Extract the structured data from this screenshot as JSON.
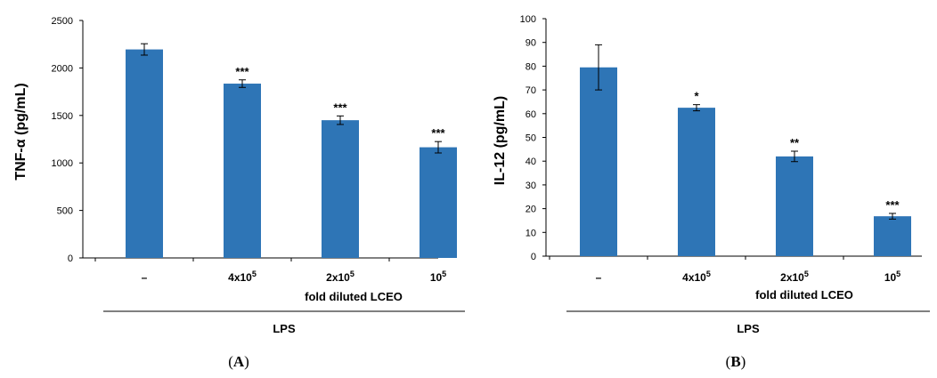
{
  "chart_data": [
    {
      "type": "bar",
      "panel_label": "(A)",
      "panel_letter": "A",
      "ylabel": "TNF-α (pg/mL)",
      "ylim": [
        0,
        2500
      ],
      "yticks": [
        "0",
        "500",
        "1000",
        "1500",
        "2000",
        "2500"
      ],
      "categories": [
        {
          "main": "–",
          "sup": ""
        },
        {
          "main": "4x10",
          "sup": "5"
        },
        {
          "main": "2x10",
          "sup": "5"
        },
        {
          "main": "10",
          "sup": "5"
        }
      ],
      "values": [
        2195,
        1835,
        1450,
        1165
      ],
      "errors": [
        60,
        40,
        45,
        60
      ],
      "significance": [
        "",
        "***",
        "***",
        "***"
      ],
      "xlabel": "fold diluted LCEO",
      "group_label": "LPS",
      "color": "#2e75b6"
    },
    {
      "type": "bar",
      "panel_label": "(B)",
      "panel_letter": "B",
      "ylabel": "IL-12 (pg/mL)",
      "ylim": [
        0,
        100
      ],
      "yticks": [
        "0",
        "10",
        "20",
        "30",
        "40",
        "50",
        "60",
        "70",
        "80",
        "90",
        "100"
      ],
      "categories": [
        {
          "main": "–",
          "sup": ""
        },
        {
          "main": "4x10",
          "sup": "5"
        },
        {
          "main": "2x10",
          "sup": "5"
        },
        {
          "main": "10",
          "sup": "5"
        }
      ],
      "values": [
        79.5,
        62.5,
        42,
        16.8
      ],
      "errors": [
        9.5,
        1.3,
        2.2,
        1.2
      ],
      "significance": [
        "",
        "*",
        "**",
        "***"
      ],
      "xlabel": "fold diluted LCEO",
      "group_label": "LPS",
      "color": "#2e75b6"
    }
  ]
}
